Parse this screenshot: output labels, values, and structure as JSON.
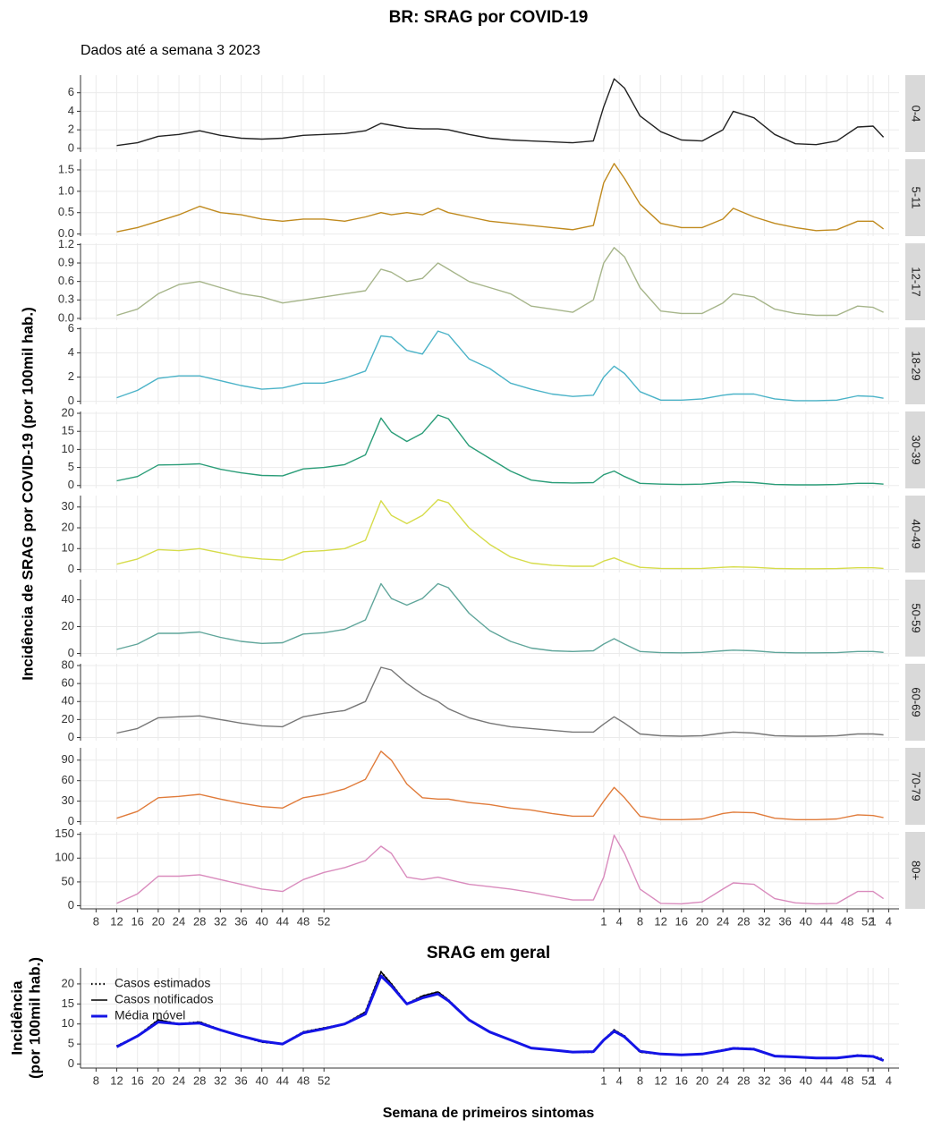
{
  "chart_data": [
    {
      "type": "facet-line",
      "title": "BR: SRAG por COVID-19",
      "subtitle": "Dados até a semana  3 2023",
      "y_label": "Incidência de SRAG por COVID-19 (por 100mil hab.)",
      "x": [
        12,
        16,
        20,
        24,
        28,
        32,
        36,
        40,
        44,
        48,
        52,
        56,
        60,
        63,
        65,
        68,
        71,
        74,
        76,
        80,
        84,
        88,
        92,
        96,
        100,
        104,
        106,
        108,
        110,
        113,
        117,
        121,
        125,
        129,
        131,
        135,
        139,
        143,
        147,
        151,
        155,
        158,
        160
      ],
      "xlim": [
        5,
        163
      ],
      "xticks": [
        8,
        12,
        16,
        20,
        24,
        28,
        32,
        36,
        40,
        44,
        48,
        52,
        {
          "value": 106,
          "label": "1"
        },
        {
          "value": 109,
          "label": "4"
        },
        {
          "value": 113,
          "label": "8"
        },
        {
          "value": 117,
          "label": "12"
        },
        {
          "value": 121,
          "label": "16"
        },
        {
          "value": 125,
          "label": "20"
        },
        {
          "value": 129,
          "label": "24"
        },
        {
          "value": 133,
          "label": "28"
        },
        {
          "value": 137,
          "label": "32"
        },
        {
          "value": 141,
          "label": "36"
        },
        {
          "value": 145,
          "label": "40"
        },
        {
          "value": 149,
          "label": "44"
        },
        {
          "value": 153,
          "label": "48"
        },
        {
          "value": 157,
          "label": "52"
        },
        {
          "value": 158,
          "label": "1"
        },
        {
          "value": 161,
          "label": "4"
        }
      ],
      "grid": true,
      "facets": [
        {
          "name": "0-4",
          "color": "#222222",
          "ylim": [
            -0.4,
            7.9
          ],
          "yticks": [
            0,
            2,
            4,
            6
          ],
          "values": [
            0.3,
            0.6,
            1.3,
            1.5,
            1.9,
            1.4,
            1.1,
            1.0,
            1.1,
            1.4,
            1.5,
            1.6,
            1.9,
            2.7,
            2.5,
            2.2,
            2.1,
            2.1,
            2.0,
            1.5,
            1.1,
            0.9,
            0.8,
            0.7,
            0.6,
            0.8,
            4.5,
            7.5,
            6.5,
            3.5,
            1.8,
            0.9,
            0.8,
            2.0,
            4.0,
            3.3,
            1.5,
            0.5,
            0.4,
            0.8,
            2.3,
            2.4,
            1.2
          ]
        },
        {
          "name": "5-11",
          "color": "#c08a1e",
          "ylim": [
            -0.05,
            1.75
          ],
          "yticks": [
            {
              "value": 0,
              "label": "0.0"
            },
            {
              "value": 0.5,
              "label": "0.5"
            },
            {
              "value": 1,
              "label": "1.0"
            },
            {
              "value": 1.5,
              "label": "1.5"
            }
          ],
          "values": [
            0.05,
            0.15,
            0.3,
            0.45,
            0.65,
            0.5,
            0.45,
            0.35,
            0.3,
            0.35,
            0.35,
            0.3,
            0.4,
            0.5,
            0.45,
            0.5,
            0.45,
            0.6,
            0.5,
            0.4,
            0.3,
            0.25,
            0.2,
            0.15,
            0.1,
            0.2,
            1.2,
            1.65,
            1.3,
            0.7,
            0.25,
            0.15,
            0.15,
            0.35,
            0.6,
            0.4,
            0.25,
            0.15,
            0.08,
            0.1,
            0.3,
            0.3,
            0.12
          ]
        },
        {
          "name": "12-17",
          "color": "#a6b58a",
          "ylim": [
            -0.03,
            1.22
          ],
          "yticks": [
            {
              "value": 0,
              "label": "0.0"
            },
            {
              "value": 0.3,
              "label": "0.3"
            },
            {
              "value": 0.6,
              "label": "0.6"
            },
            {
              "value": 0.9,
              "label": "0.9"
            },
            {
              "value": 1.2,
              "label": "1.2"
            }
          ],
          "values": [
            0.05,
            0.15,
            0.4,
            0.55,
            0.6,
            0.5,
            0.4,
            0.35,
            0.25,
            0.3,
            0.35,
            0.4,
            0.45,
            0.8,
            0.75,
            0.6,
            0.65,
            0.9,
            0.8,
            0.6,
            0.5,
            0.4,
            0.2,
            0.15,
            0.1,
            0.3,
            0.9,
            1.15,
            1.0,
            0.5,
            0.12,
            0.08,
            0.08,
            0.25,
            0.4,
            0.35,
            0.15,
            0.08,
            0.05,
            0.05,
            0.2,
            0.18,
            0.1
          ]
        },
        {
          "name": "18-29",
          "color": "#4bb3c8",
          "ylim": [
            -0.25,
            6.1
          ],
          "yticks": [
            0,
            2,
            4,
            6
          ],
          "values": [
            0.3,
            0.9,
            1.9,
            2.1,
            2.1,
            1.7,
            1.3,
            1.0,
            1.1,
            1.5,
            1.5,
            1.9,
            2.5,
            5.4,
            5.3,
            4.2,
            3.9,
            5.8,
            5.5,
            3.5,
            2.7,
            1.5,
            1.0,
            0.6,
            0.4,
            0.5,
            2.0,
            2.9,
            2.3,
            0.8,
            0.1,
            0.1,
            0.2,
            0.5,
            0.6,
            0.6,
            0.2,
            0.05,
            0.05,
            0.1,
            0.45,
            0.4,
            0.25
          ]
        },
        {
          "name": "30-39",
          "color": "#2a9d78",
          "ylim": [
            -0.8,
            20.5
          ],
          "yticks": [
            0,
            5,
            10,
            15,
            20
          ],
          "values": [
            1.3,
            2.5,
            5.7,
            5.8,
            6.0,
            4.5,
            3.5,
            2.8,
            2.7,
            4.6,
            5.0,
            5.8,
            8.5,
            18.7,
            14.8,
            12.2,
            14.5,
            19.5,
            18.5,
            11.0,
            7.5,
            4.0,
            1.5,
            0.8,
            0.7,
            0.8,
            3.0,
            4.0,
            2.5,
            0.6,
            0.4,
            0.3,
            0.4,
            0.8,
            1.0,
            0.8,
            0.3,
            0.2,
            0.2,
            0.3,
            0.6,
            0.6,
            0.4
          ]
        },
        {
          "name": "40-49",
          "color": "#d6dc4a",
          "ylim": [
            -1.5,
            35.5
          ],
          "yticks": [
            0,
            10,
            20,
            30
          ],
          "values": [
            2.5,
            5,
            9.5,
            9,
            10,
            8,
            6,
            5,
            4.5,
            8.5,
            9,
            10,
            14,
            33,
            26,
            22,
            26,
            33.5,
            32,
            20,
            12,
            6,
            3,
            2,
            1.5,
            1.5,
            4,
            5.5,
            3.5,
            1.0,
            0.5,
            0.4,
            0.5,
            1,
            1.2,
            1,
            0.5,
            0.3,
            0.3,
            0.4,
            0.8,
            0.8,
            0.5
          ]
        },
        {
          "name": "50-59",
          "color": "#5fa59a",
          "ylim": [
            -2.3,
            55
          ],
          "yticks": [
            0,
            20,
            40
          ],
          "values": [
            3,
            7,
            15,
            15,
            16,
            12,
            9,
            7.5,
            8,
            14.5,
            15.5,
            18,
            25,
            52,
            41,
            36,
            41,
            52,
            49,
            30,
            17,
            9,
            4,
            2,
            1.5,
            2,
            7,
            11,
            7,
            1.5,
            0.6,
            0.5,
            0.8,
            2,
            2.5,
            2,
            0.8,
            0.5,
            0.5,
            0.6,
            1.5,
            1.5,
            0.8
          ]
        },
        {
          "name": "60-69",
          "color": "#777777",
          "ylim": [
            -3.5,
            82
          ],
          "yticks": [
            0,
            20,
            40,
            60,
            80
          ],
          "values": [
            5,
            10,
            22,
            23,
            24,
            20,
            16,
            13,
            12,
            23,
            27,
            30,
            40,
            78,
            75,
            60,
            48,
            40,
            32,
            22,
            16,
            12,
            10,
            8,
            6,
            6,
            15,
            23,
            16,
            4,
            2,
            1.5,
            2,
            5,
            6,
            5,
            2,
            1.5,
            1.5,
            2,
            4,
            4,
            3
          ]
        },
        {
          "name": "70-79",
          "color": "#e07b3a",
          "ylim": [
            -4.5,
            108
          ],
          "yticks": [
            0,
            30,
            60,
            90
          ],
          "values": [
            5,
            15,
            35,
            37,
            40,
            33,
            27,
            22,
            20,
            35,
            40,
            48,
            62,
            103,
            90,
            55,
            35,
            33,
            33,
            28,
            25,
            20,
            17,
            12,
            8,
            8,
            30,
            50,
            35,
            8,
            3,
            3,
            4,
            12,
            14,
            13,
            5,
            3,
            3,
            4,
            10,
            9,
            6
          ]
        },
        {
          "name": "80+",
          "color": "#d98bbd",
          "ylim": [
            -6.5,
            155
          ],
          "yticks": [
            0,
            50,
            100,
            150
          ],
          "values": [
            5,
            25,
            62,
            62,
            65,
            55,
            45,
            35,
            30,
            55,
            70,
            80,
            95,
            125,
            110,
            60,
            55,
            60,
            55,
            45,
            40,
            35,
            28,
            20,
            12,
            12,
            60,
            148,
            110,
            35,
            5,
            4,
            8,
            35,
            48,
            45,
            15,
            6,
            4,
            5,
            30,
            30,
            15
          ]
        }
      ]
    },
    {
      "type": "line",
      "title": "SRAG em geral",
      "x_label": "Semana de primeiros sintomas",
      "y_label": [
        "Incidência",
        "(por 100mil hab.)"
      ],
      "x": [
        12,
        16,
        20,
        24,
        28,
        32,
        36,
        40,
        44,
        48,
        52,
        56,
        60,
        63,
        65,
        68,
        71,
        74,
        76,
        80,
        84,
        88,
        92,
        96,
        100,
        104,
        106,
        108,
        110,
        113,
        117,
        121,
        125,
        129,
        131,
        135,
        139,
        143,
        147,
        151,
        155,
        158,
        160
      ],
      "xlim": [
        5,
        163
      ],
      "xticks": [
        8,
        12,
        16,
        20,
        24,
        28,
        32,
        36,
        40,
        44,
        48,
        52,
        {
          "value": 106,
          "label": "1"
        },
        {
          "value": 109,
          "label": "4"
        },
        {
          "value": 113,
          "label": "8"
        },
        {
          "value": 117,
          "label": "12"
        },
        {
          "value": 121,
          "label": "16"
        },
        {
          "value": 125,
          "label": "20"
        },
        {
          "value": 129,
          "label": "24"
        },
        {
          "value": 133,
          "label": "28"
        },
        {
          "value": 137,
          "label": "32"
        },
        {
          "value": 141,
          "label": "36"
        },
        {
          "value": 145,
          "label": "40"
        },
        {
          "value": 149,
          "label": "44"
        },
        {
          "value": 153,
          "label": "48"
        },
        {
          "value": 157,
          "label": "52"
        },
        {
          "value": 158,
          "label": "1"
        },
        {
          "value": 161,
          "label": "4"
        }
      ],
      "ylim": [
        -1,
        24
      ],
      "yticks": [
        0,
        5,
        10,
        15,
        20
      ],
      "grid": true,
      "legend": "top-left",
      "series": [
        {
          "name": "Casos estimados",
          "color": "#000000",
          "linestyle": "dotted",
          "values": [
            4.5,
            7,
            11,
            10,
            10.5,
            8.5,
            7,
            5.5,
            5,
            8,
            9,
            10,
            13,
            23,
            20,
            15,
            17,
            18,
            16,
            11,
            8,
            6,
            4,
            3.5,
            3,
            3,
            6,
            8.5,
            7,
            3,
            2.5,
            2.3,
            2.5,
            3.5,
            4,
            3.8,
            2,
            1.8,
            1.5,
            1.5,
            2.2,
            2,
            1.2
          ]
        },
        {
          "name": "Casos notificados",
          "color": "#000000",
          "linestyle": "solid",
          "values": [
            4.5,
            7,
            11,
            10,
            10.5,
            8.5,
            7,
            5.5,
            5,
            8,
            9,
            10,
            13,
            23,
            20,
            15,
            17,
            18,
            16,
            11,
            8,
            6,
            4,
            3.5,
            3,
            3,
            6,
            8.5,
            7,
            3,
            2.5,
            2.3,
            2.5,
            3.5,
            4,
            3.8,
            2,
            1.8,
            1.5,
            1.5,
            2.2,
            1.9,
            0.8
          ]
        },
        {
          "name": "Média móvel",
          "color": "#1414e6",
          "linestyle": "thick",
          "values": [
            4.3,
            7,
            10.5,
            10,
            10.2,
            8.5,
            7,
            5.7,
            5,
            7.8,
            8.8,
            10,
            12.5,
            22,
            19.5,
            15,
            16.5,
            17.5,
            15.8,
            11,
            8,
            6,
            4,
            3.5,
            3,
            3.1,
            6,
            8.2,
            6.8,
            3.2,
            2.5,
            2.3,
            2.5,
            3.4,
            3.9,
            3.7,
            2,
            1.8,
            1.5,
            1.5,
            2.1,
            1.9,
            0.9
          ]
        }
      ]
    }
  ]
}
